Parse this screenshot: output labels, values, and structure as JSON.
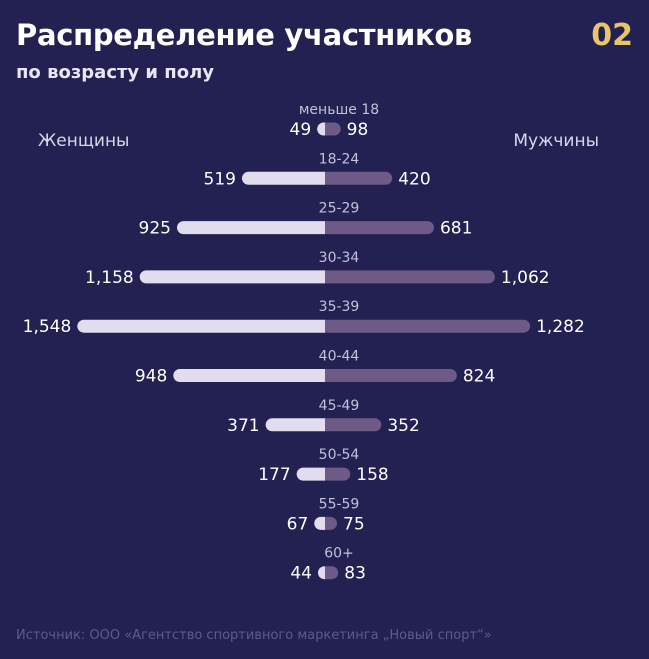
{
  "header": {
    "title": "Распределение участников",
    "subtitle": "по возрасту и полу",
    "badge": "02"
  },
  "legend": {
    "left": "Женщины",
    "right": "Мужчины"
  },
  "footer": {
    "source": "Источник: ООО «Агентство спортивного маркетинга „Новый спорт“»"
  },
  "colors": {
    "background": "#232152",
    "women": "#e2dcef",
    "men": "#6d5a86",
    "accent": "#e9c46a"
  },
  "chart_data": {
    "type": "bar",
    "orientation": "horizontal-population-pyramid",
    "categories": [
      "меньше 18",
      "18-24",
      "25-29",
      "30-34",
      "35-39",
      "40-44",
      "45-49",
      "50-54",
      "55-59",
      "60+"
    ],
    "series": [
      {
        "name": "Женщины",
        "values": [
          49,
          519,
          925,
          1158,
          1548,
          948,
          371,
          177,
          67,
          44
        ],
        "labels": [
          "49",
          "519",
          "925",
          "1,158",
          "1,548",
          "948",
          "371",
          "177",
          "67",
          "44"
        ]
      },
      {
        "name": "Мужчины",
        "values": [
          98,
          420,
          681,
          1062,
          1282,
          824,
          352,
          158,
          75,
          83
        ],
        "labels": [
          "98",
          "420",
          "681",
          "1,062",
          "1,282",
          "824",
          "352",
          "158",
          "75",
          "83"
        ]
      }
    ]
  }
}
